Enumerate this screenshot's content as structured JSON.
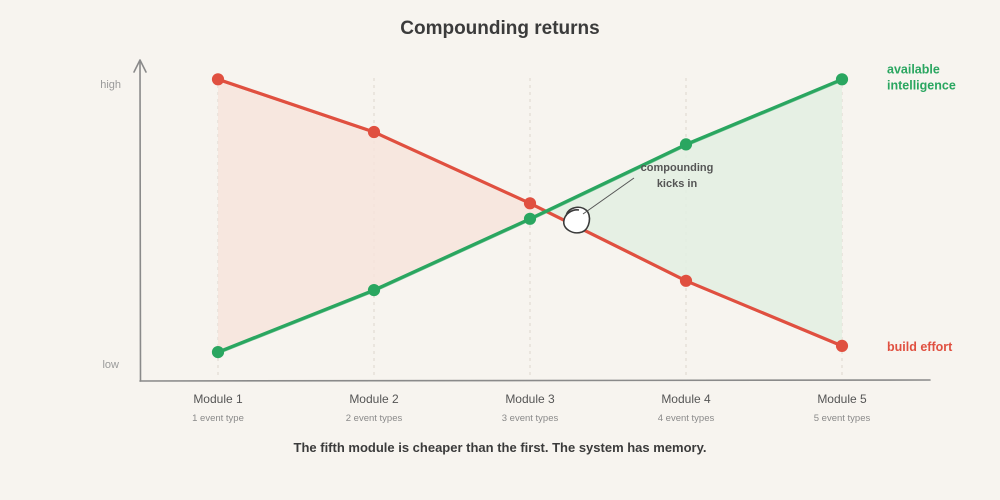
{
  "chart_data": {
    "type": "line",
    "title": "Compounding returns",
    "caption": "The fifth module is cheaper than the first. The system has memory.",
    "categories": [
      "Module 1",
      "Module 2",
      "Module 3",
      "Module 4",
      "Module 5"
    ],
    "category_sublabels": [
      "1 event type",
      "2 event types",
      "3 event types",
      "4 event types",
      "5 event types"
    ],
    "y_levels": {
      "high": "high",
      "low": "low"
    },
    "ylim": [
      0,
      1
    ],
    "grid": false,
    "series": [
      {
        "name": "build effort",
        "label_lines": [
          "build effort"
        ],
        "color": "#e05040",
        "values": [
          0.97,
          0.8,
          0.57,
          0.32,
          0.11
        ]
      },
      {
        "name": "available intelligence",
        "label_lines": [
          "available",
          "intelligence"
        ],
        "color": "#2aa660",
        "values": [
          0.09,
          0.29,
          0.52,
          0.76,
          0.97
        ]
      }
    ],
    "annotation": {
      "lines": [
        "compounding",
        "kicks in"
      ]
    },
    "colors": {
      "effort_fill": "#f7e4dc",
      "intel_fill": "#e3efe2",
      "axis": "#8a8a8a",
      "background": "#f7f4ef"
    }
  }
}
